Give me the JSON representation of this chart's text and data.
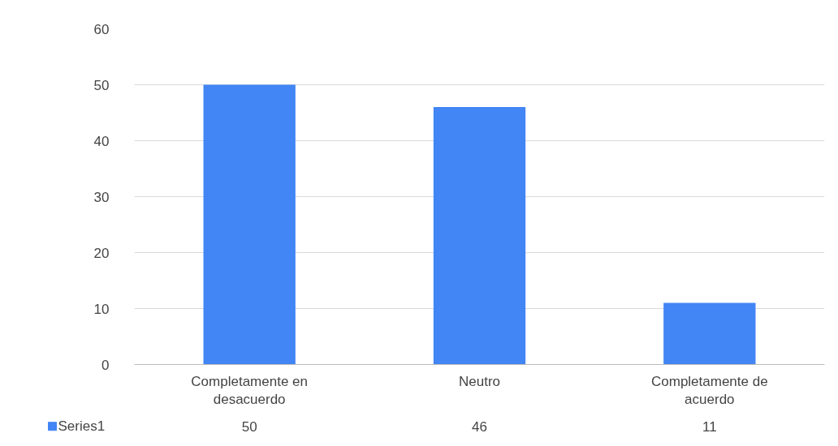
{
  "chart_data": {
    "type": "bar",
    "categories": [
      "Completamente en desacuerdo",
      "Neutro",
      "Completamente de acuerdo"
    ],
    "series": [
      {
        "name": "Series1",
        "color": "#4285f4",
        "values": [
          50,
          46,
          11
        ]
      }
    ],
    "ylim": [
      0,
      60
    ],
    "yticks": [
      0,
      10,
      20,
      30,
      40,
      50,
      60
    ],
    "grid": "y",
    "legend": "bottom",
    "data_labels": true
  }
}
